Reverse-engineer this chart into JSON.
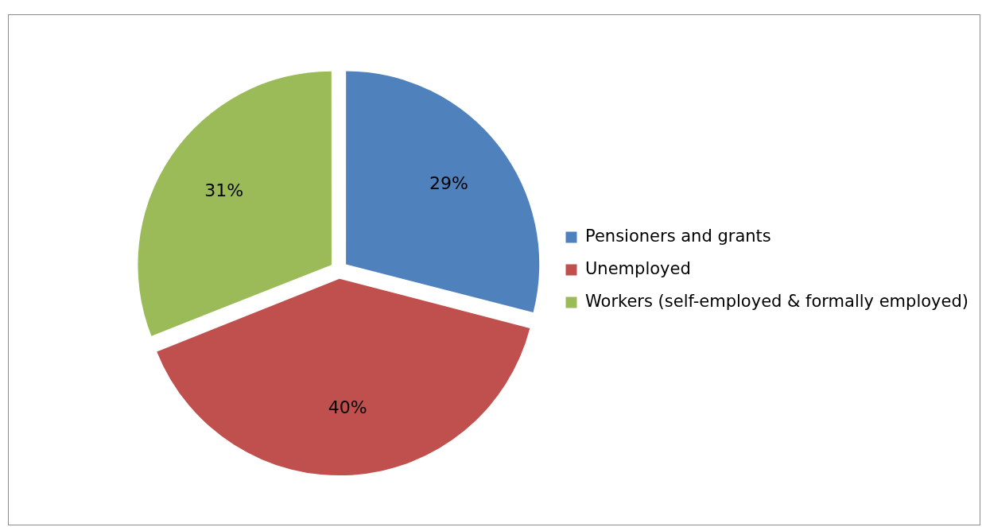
{
  "chart_data": {
    "type": "pie",
    "categories": [
      "Pensioners and grants",
      "Unemployed",
      "Workers (self-employed & formally employed)"
    ],
    "values": [
      29,
      40,
      31
    ],
    "colors": [
      "#4f81bd",
      "#c0504d",
      "#9bbb59"
    ],
    "value_labels": [
      "29%",
      "40%",
      "31%"
    ],
    "legend": "right"
  }
}
